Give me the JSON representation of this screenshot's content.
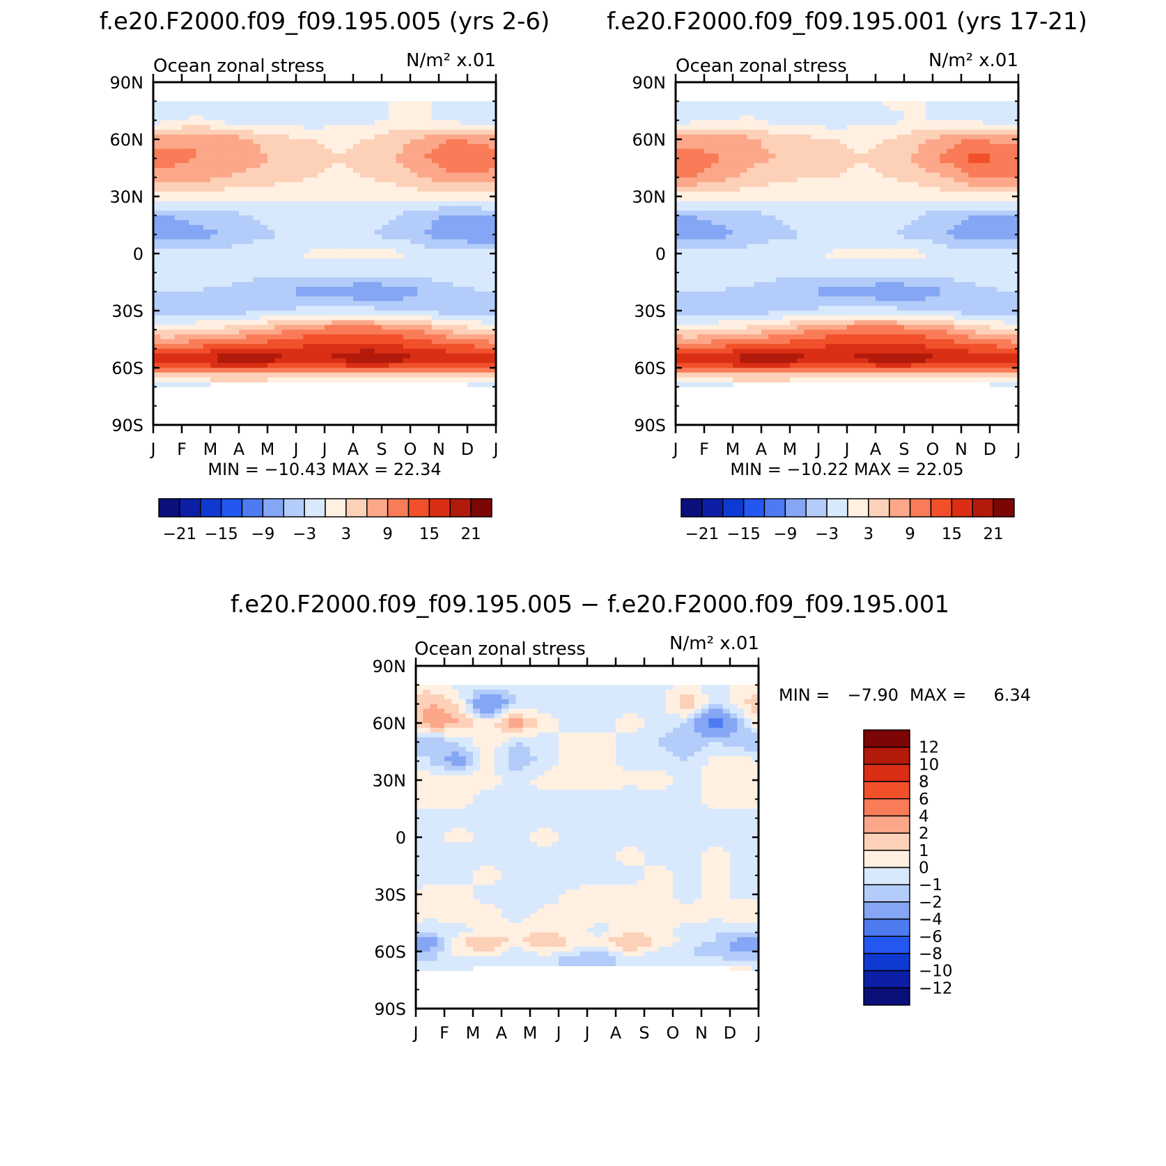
{
  "chart_data": [
    {
      "type": "heatmap",
      "title": "f.e20.F2000.f09_f09.195.005 (yrs 2-6)",
      "subtitle_left": "Ocean zonal stress",
      "subtitle_right": "N/m² x.01",
      "x_ticks": [
        "J",
        "F",
        "M",
        "A",
        "M",
        "J",
        "J",
        "A",
        "S",
        "O",
        "N",
        "D",
        "J"
      ],
      "y_ticks": [
        "90N",
        "60N",
        "30N",
        "0",
        "30S",
        "60S",
        "90S"
      ],
      "ylim": [
        -90,
        90
      ],
      "stats": "MIN = −10.43 MAX = 22.34",
      "colorbar_ticks": [
        "−21",
        "−15",
        "−9",
        "−3",
        "3",
        "9",
        "15",
        "21"
      ],
      "field": {
        "lats": [
          80,
          70,
          60,
          50,
          40,
          30,
          20,
          10,
          0,
          -10,
          -20,
          -30,
          -40,
          -50,
          -55,
          -60,
          -65,
          -70
        ],
        "months": [
          "J",
          "F",
          "M",
          "A",
          "M",
          "J",
          "J",
          "A",
          "S",
          "O",
          "N",
          "D"
        ],
        "values": [
          [
            -2,
            -2,
            -2,
            -2,
            -2,
            -1,
            -1,
            -1,
            0.5,
            0.5,
            -1,
            -2
          ],
          [
            -1,
            0.5,
            -1,
            -2,
            -2,
            -2,
            -1,
            -1,
            0.5,
            0.5,
            -1,
            -2
          ],
          [
            8,
            9,
            8,
            6,
            4,
            3,
            2,
            3,
            5,
            7,
            9,
            8
          ],
          [
            10,
            9,
            8,
            7,
            5,
            4,
            3,
            4,
            6,
            9,
            12,
            11
          ],
          [
            8,
            7,
            6,
            5,
            4,
            3,
            2,
            3,
            4,
            6,
            8,
            8
          ],
          [
            2,
            2,
            1,
            1,
            1,
            0.5,
            0.5,
            0.5,
            1,
            2,
            2,
            2
          ],
          [
            -6,
            -5,
            -4,
            -3,
            -2,
            -2,
            -2,
            -2,
            -3,
            -5,
            -7,
            -6
          ],
          [
            -8,
            -7,
            -6,
            -4,
            -3,
            -3,
            -3,
            -3,
            -4,
            -6,
            -8,
            -9
          ],
          [
            -2,
            -2,
            -2,
            -1,
            -1,
            0.5,
            1,
            1,
            0.5,
            -1,
            -2,
            -2
          ],
          [
            -1,
            -1,
            -1,
            -2,
            -2,
            -2,
            -2,
            -2,
            -2,
            -2,
            -1,
            -1
          ],
          [
            -3,
            -3,
            -4,
            -5,
            -6,
            -7,
            -8,
            -9,
            -8,
            -6,
            -4,
            -3
          ],
          [
            -5,
            -5,
            -5,
            -4,
            -3,
            -2,
            -2,
            -2,
            -3,
            -4,
            -5,
            -5
          ],
          [
            2,
            3,
            4,
            6,
            8,
            10,
            11,
            11,
            10,
            8,
            5,
            3
          ],
          [
            12,
            13,
            14,
            15,
            15,
            16,
            16,
            17,
            16,
            15,
            14,
            13
          ],
          [
            17,
            18,
            20,
            21,
            19,
            18,
            19,
            22,
            20,
            18,
            17,
            17
          ],
          [
            12,
            13,
            14,
            14,
            13,
            12,
            13,
            14,
            13,
            12,
            12,
            12
          ],
          [
            1,
            2,
            3,
            3,
            2,
            1,
            1,
            2,
            2,
            1,
            1,
            1
          ],
          [
            -1,
            -1,
            null,
            null,
            null,
            null,
            null,
            null,
            null,
            null,
            null,
            -1
          ]
        ]
      }
    },
    {
      "type": "heatmap",
      "title": "f.e20.F2000.f09_f09.195.001 (yrs 17-21)",
      "subtitle_left": "Ocean zonal stress",
      "subtitle_right": "N/m² x.01",
      "x_ticks": [
        "J",
        "F",
        "M",
        "A",
        "M",
        "J",
        "J",
        "A",
        "S",
        "O",
        "N",
        "D",
        "J"
      ],
      "y_ticks": [
        "90N",
        "60N",
        "30N",
        "0",
        "30S",
        "60S",
        "90S"
      ],
      "ylim": [
        -90,
        90
      ],
      "stats": "MIN = −10.22 MAX = 22.05",
      "colorbar_ticks": [
        "−21",
        "−15",
        "−9",
        "−3",
        "3",
        "9",
        "15",
        "21"
      ],
      "field": {
        "lats": [
          80,
          70,
          60,
          50,
          40,
          30,
          20,
          10,
          0,
          -10,
          -20,
          -30,
          -40,
          -50,
          -55,
          -60,
          -65,
          -70
        ],
        "months": [
          "J",
          "F",
          "M",
          "A",
          "M",
          "J",
          "J",
          "A",
          "S",
          "O",
          "N",
          "D"
        ],
        "values": [
          [
            -2,
            -2,
            -1,
            -2,
            -2,
            -1,
            -1,
            0.5,
            0.5,
            -1,
            -2,
            -2
          ],
          [
            -1,
            -1,
            0.5,
            -1,
            -2,
            -2,
            -1,
            -1,
            0.5,
            -1,
            -1,
            -2
          ],
          [
            7,
            8,
            7,
            5,
            4,
            3,
            2,
            3,
            5,
            8,
            9,
            8
          ],
          [
            11,
            9,
            7,
            6,
            5,
            4,
            3,
            4,
            7,
            10,
            13,
            12
          ],
          [
            9,
            7,
            5,
            4,
            3,
            3,
            2,
            3,
            4,
            6,
            9,
            9
          ],
          [
            2,
            2,
            1,
            1,
            1,
            0.5,
            0.5,
            0.5,
            1,
            2,
            2,
            2
          ],
          [
            -6,
            -5,
            -4,
            -3,
            -2,
            -2,
            -2,
            -2,
            -3,
            -5,
            -6,
            -6
          ],
          [
            -8,
            -7,
            -5,
            -4,
            -3,
            -3,
            -3,
            -3,
            -4,
            -6,
            -8,
            -8
          ],
          [
            -2,
            -2,
            -2,
            -1,
            -1,
            0.5,
            1,
            1,
            0.5,
            -1,
            -2,
            -2
          ],
          [
            -1,
            -1,
            -1,
            -2,
            -2,
            -2,
            -2,
            -2,
            -2,
            -2,
            -1,
            -1
          ],
          [
            -3,
            -3,
            -4,
            -5,
            -6,
            -7,
            -8,
            -9,
            -8,
            -6,
            -4,
            -3
          ],
          [
            -5,
            -5,
            -5,
            -4,
            -3,
            -2,
            -2,
            -2,
            -3,
            -4,
            -5,
            -5
          ],
          [
            2,
            3,
            4,
            6,
            8,
            10,
            11,
            11,
            10,
            8,
            5,
            3
          ],
          [
            12,
            13,
            14,
            15,
            15,
            16,
            16,
            17,
            16,
            15,
            14,
            13
          ],
          [
            16,
            18,
            20,
            21,
            19,
            18,
            19,
            21,
            20,
            18,
            17,
            16
          ],
          [
            12,
            13,
            14,
            14,
            13,
            12,
            13,
            14,
            13,
            12,
            12,
            12
          ],
          [
            1,
            2,
            3,
            3,
            2,
            1,
            1,
            2,
            2,
            1,
            1,
            1
          ],
          [
            -1,
            -1,
            null,
            null,
            null,
            null,
            null,
            null,
            null,
            null,
            null,
            -1
          ]
        ]
      }
    },
    {
      "type": "heatmap",
      "title": "f.e20.F2000.f09_f09.195.005 − f.e20.F2000.f09_f09.195.001",
      "subtitle_left": "Ocean zonal stress",
      "subtitle_right": "N/m² x.01",
      "x_ticks": [
        "J",
        "F",
        "M",
        "A",
        "M",
        "J",
        "J",
        "A",
        "S",
        "O",
        "N",
        "D",
        "J"
      ],
      "y_ticks": [
        "90N",
        "60N",
        "30N",
        "0",
        "30S",
        "60S",
        "90S"
      ],
      "ylim": [
        -90,
        90
      ],
      "stats_min": "MIN =",
      "stats_min_value": "−7.90",
      "stats_max": "MAX =",
      "stats_max_value": "6.34",
      "colorbar_ticks": [
        "12",
        "10",
        "8",
        "6",
        "4",
        "2",
        "1",
        "0",
        "−1",
        "−2",
        "−4",
        "−6",
        "−8",
        "−10",
        "−12"
      ],
      "field": {
        "lats": [
          80,
          70,
          60,
          50,
          40,
          30,
          20,
          10,
          0,
          -10,
          -20,
          -30,
          -40,
          -50,
          -55,
          -60,
          -65,
          -70
        ],
        "months": [
          "J",
          "F",
          "M",
          "A",
          "M",
          "J",
          "J",
          "A",
          "S",
          "O",
          "N",
          "D"
        ],
        "values": [
          [
            0.5,
            -0.5,
            -0.5,
            -0.5,
            -0.5,
            -0.5,
            -0.5,
            -0.5,
            -0.5,
            0.5,
            -0.5,
            0.5
          ],
          [
            2,
            1,
            -5,
            -1,
            -0.5,
            -0.5,
            -0.5,
            -0.5,
            -0.5,
            2,
            -1,
            1
          ],
          [
            3,
            2,
            0.5,
            3,
            0.5,
            -0.5,
            -0.5,
            0.5,
            -0.5,
            -1,
            -5,
            -1
          ],
          [
            -2,
            -1,
            1,
            -1,
            -0.5,
            0.5,
            0.5,
            -0.5,
            -1,
            -2,
            -1,
            -2
          ],
          [
            -1,
            -3,
            0.5,
            -2,
            -0.5,
            0.5,
            0.5,
            -0.5,
            -0.5,
            -1,
            0.5,
            0.5
          ],
          [
            0.5,
            0.5,
            0.5,
            -0.5,
            0.5,
            0.5,
            0.5,
            0.5,
            0.5,
            -0.5,
            0.5,
            0.5
          ],
          [
            0.5,
            0.5,
            -0.5,
            -0.5,
            -0.5,
            -0.5,
            -0.5,
            -1,
            -0.5,
            -0.5,
            0.5,
            0.5
          ],
          [
            -0.5,
            -0.5,
            -0.5,
            -0.5,
            -0.5,
            -0.5,
            -0.5,
            -0.5,
            -0.5,
            -0.5,
            -0.5,
            -0.5
          ],
          [
            -0.5,
            0.5,
            -0.5,
            -0.5,
            0.5,
            -0.5,
            -0.5,
            -0.5,
            -0.5,
            -0.5,
            -0.5,
            -0.5
          ],
          [
            -0.5,
            -1,
            -0.5,
            -0.5,
            -0.5,
            -0.5,
            -0.5,
            0.5,
            -0.5,
            -0.5,
            0.5,
            -0.5
          ],
          [
            -0.5,
            -0.5,
            0.5,
            -0.5,
            -0.5,
            -1,
            -0.5,
            -0.5,
            0.5,
            -0.5,
            0.5,
            -0.5
          ],
          [
            0.5,
            0.5,
            -0.5,
            -1,
            -1,
            0.5,
            0.5,
            0.5,
            0.5,
            -0.5,
            0.5,
            -0.5
          ],
          [
            0.5,
            0.5,
            0.5,
            -0.5,
            0.5,
            0.5,
            0.5,
            0.5,
            0.5,
            0.5,
            0.5,
            1
          ],
          [
            -1,
            -0.5,
            0.5,
            0.5,
            1,
            0.5,
            -0.5,
            1,
            0.5,
            -0.5,
            -1,
            -1
          ],
          [
            -3,
            1,
            2,
            1,
            2,
            1,
            1,
            2,
            1,
            -0.5,
            -1,
            -3
          ],
          [
            -2,
            0.5,
            1,
            -1,
            0.5,
            -0.5,
            -1,
            1,
            -0.5,
            -1,
            -2,
            -2
          ],
          [
            -1,
            -0.5,
            -0.5,
            -0.5,
            -1,
            -2,
            -2,
            -1,
            -0.5,
            -0.5,
            -0.5,
            -1
          ],
          [
            -0.5,
            -0.5,
            null,
            null,
            null,
            null,
            null,
            null,
            null,
            null,
            null,
            0.5
          ]
        ]
      }
    }
  ],
  "colors": {
    "colorbar_top": [
      "#0a0f7a",
      "#0d1fa6",
      "#0f3ad1",
      "#2457ef",
      "#4f7bf2",
      "#84a6f4",
      "#b4ccf9",
      "#d9e9fd",
      "#fff0e1",
      "#fdd0b8",
      "#fca789",
      "#f97b57",
      "#f1502a",
      "#da2f14",
      "#b21a0b",
      "#7c0606"
    ],
    "colorbar_diff": [
      "#7c0606",
      "#b21a0b",
      "#da2f14",
      "#f1502a",
      "#f97b57",
      "#fca789",
      "#fdd0b8",
      "#fff0e1",
      "#d9e9fd",
      "#b4ccf9",
      "#84a6f4",
      "#4f7bf2",
      "#2457ef",
      "#0f3ad1",
      "#0d1fa6",
      "#0a0f7a"
    ]
  }
}
